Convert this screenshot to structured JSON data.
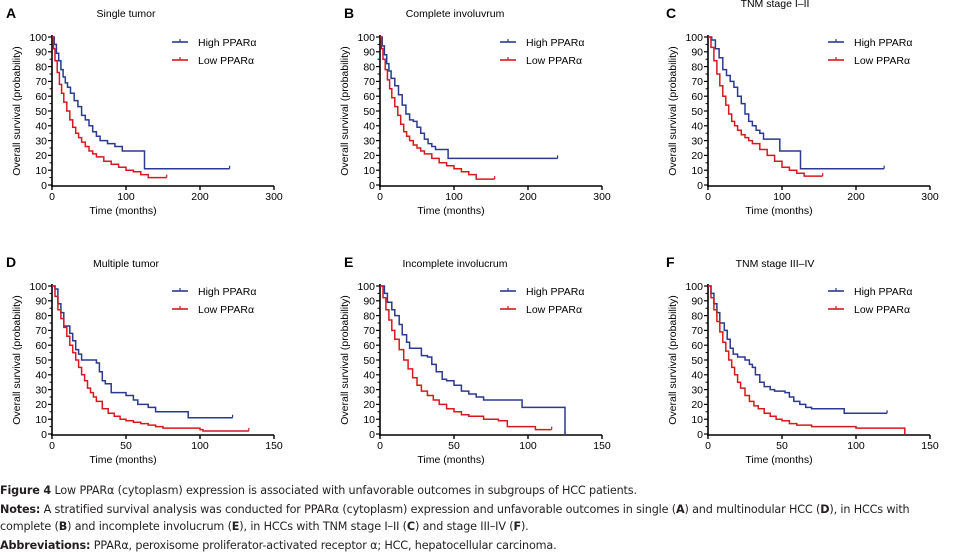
{
  "figure": {
    "caption_label": "Figure 4",
    "caption_title": "Low PPARα (cytoplasm) expression is associated with unfavorable outcomes in subgroups of HCC patients.",
    "notes_label": "Notes:",
    "notes_line1": "A stratified survival analysis was conducted for PPARα (cytoplasm) expression and unfavorable outcomes in single (",
    "notes_line1_A": "A",
    "notes_line1_mid": ") and multinodular HCC (",
    "notes_line1_D": "D",
    "notes_line1_end": "), in HCCs with",
    "notes_line2_start": "complete (",
    "notes_line2_B": "B",
    "notes_line2_mid1": ") and incomplete involucrum (",
    "notes_line2_E": "E",
    "notes_line2_mid2": "), in HCCs with TNM stage I–II (",
    "notes_line2_C": "C",
    "notes_line2_mid3": ") and stage III–IV (",
    "notes_line2_F": "F",
    "notes_line2_end": ").",
    "abbrev_label": "Abbreviations:",
    "abbrev_text": "PPARα, peroxisome proliferator-activated receptor α; HCC, hepatocellular carcinoma."
  },
  "colors": {
    "high": "#2b3990",
    "low": "#d7191f",
    "axis": "#000000"
  },
  "chart_data": [
    {
      "type": "line",
      "subtype": "kaplan-meier",
      "panel": "A",
      "title": "Single tumor",
      "xlabel": "Time (months)",
      "ylabel": "Overall survival (probability)",
      "xlim": [
        0,
        300
      ],
      "ylim": [
        0,
        100
      ],
      "xticks": [
        0,
        100,
        200,
        300
      ],
      "yticks": [
        0,
        10,
        20,
        30,
        40,
        50,
        60,
        70,
        80,
        90,
        100
      ],
      "legend": [
        "High PPARα",
        "Low PPARα"
      ],
      "legend_position": "top-right",
      "series": [
        {
          "name": "High PPARα",
          "x": [
            0,
            3,
            6,
            9,
            12,
            15,
            18,
            21,
            25,
            30,
            35,
            40,
            45,
            50,
            55,
            60,
            65,
            75,
            85,
            95,
            110,
            125,
            125,
            240
          ],
          "y": [
            100,
            95,
            89,
            84,
            78,
            73,
            69,
            66,
            62,
            57,
            53,
            47,
            44,
            40,
            36,
            33,
            30,
            28,
            26,
            23,
            23,
            23,
            11,
            11
          ]
        },
        {
          "name": "Low PPARα",
          "x": [
            0,
            2,
            4,
            7,
            10,
            13,
            16,
            20,
            24,
            28,
            32,
            36,
            40,
            45,
            50,
            55,
            60,
            70,
            80,
            90,
            100,
            110,
            120,
            130,
            155
          ],
          "y": [
            100,
            92,
            84,
            76,
            68,
            62,
            56,
            50,
            44,
            39,
            35,
            32,
            29,
            26,
            23,
            21,
            19,
            16,
            14,
            12,
            10,
            9,
            7,
            5,
            5
          ]
        }
      ]
    },
    {
      "type": "line",
      "subtype": "kaplan-meier",
      "panel": "B",
      "title": "Complete involuvrum",
      "xlabel": "Time (months)",
      "ylabel": "Overall survival (probability)",
      "xlim": [
        0,
        300
      ],
      "ylim": [
        0,
        100
      ],
      "xticks": [
        0,
        100,
        200,
        300
      ],
      "yticks": [
        0,
        10,
        20,
        30,
        40,
        50,
        60,
        70,
        80,
        90,
        100
      ],
      "legend": [
        "High PPARα",
        "Low PPARα"
      ],
      "legend_position": "top-right",
      "series": [
        {
          "name": "High PPARα",
          "x": [
            0,
            3,
            6,
            9,
            12,
            15,
            20,
            25,
            30,
            35,
            40,
            45,
            50,
            55,
            60,
            65,
            70,
            75,
            92,
            92,
            240
          ],
          "y": [
            100,
            94,
            88,
            82,
            77,
            72,
            67,
            61,
            54,
            48,
            44,
            43,
            39,
            35,
            31,
            28,
            26,
            24,
            24,
            18,
            18
          ]
        },
        {
          "name": "Low PPARα",
          "x": [
            0,
            2,
            4,
            7,
            10,
            13,
            16,
            20,
            24,
            28,
            32,
            36,
            40,
            45,
            50,
            55,
            60,
            70,
            80,
            90,
            100,
            110,
            120,
            130,
            155
          ],
          "y": [
            100,
            92,
            85,
            78,
            71,
            65,
            59,
            53,
            47,
            41,
            36,
            33,
            30,
            27,
            25,
            23,
            21,
            18,
            15,
            13,
            11,
            9,
            7,
            4,
            4
          ]
        }
      ]
    },
    {
      "type": "line",
      "subtype": "kaplan-meier",
      "panel": "C",
      "title": "TNM stage I–II",
      "xlabel": "Time (months)",
      "ylabel": "Overall survival (probability)",
      "xlim": [
        0,
        300
      ],
      "ylim": [
        0,
        100
      ],
      "xticks": [
        0,
        100,
        200,
        300
      ],
      "yticks": [
        0,
        10,
        20,
        30,
        40,
        50,
        60,
        70,
        80,
        90,
        100
      ],
      "legend": [
        "High PPARα",
        "Low PPARα"
      ],
      "legend_position": "top-right",
      "series": [
        {
          "name": "High PPARα",
          "x": [
            0,
            5,
            10,
            15,
            20,
            25,
            30,
            35,
            40,
            45,
            50,
            55,
            60,
            65,
            70,
            75,
            97,
            97,
            125,
            125,
            238
          ],
          "y": [
            100,
            98,
            92,
            86,
            78,
            74,
            70,
            66,
            60,
            55,
            48,
            43,
            40,
            37,
            35,
            31,
            31,
            23,
            23,
            11,
            11
          ]
        },
        {
          "name": "Low PPARα",
          "x": [
            0,
            4,
            8,
            12,
            16,
            20,
            24,
            28,
            32,
            36,
            40,
            45,
            50,
            55,
            60,
            70,
            80,
            90,
            100,
            110,
            120,
            130,
            155
          ],
          "y": [
            100,
            93,
            84,
            75,
            67,
            60,
            54,
            48,
            43,
            40,
            37,
            34,
            32,
            30,
            28,
            24,
            20,
            16,
            12,
            10,
            8,
            6,
            6
          ]
        }
      ]
    },
    {
      "type": "line",
      "subtype": "kaplan-meier",
      "panel": "D",
      "title": "Multiple tumor",
      "xlabel": "Time (months)",
      "ylabel": "Overall survival (probability)",
      "xlim": [
        0,
        150
      ],
      "ylim": [
        0,
        100
      ],
      "xticks": [
        0,
        50,
        100,
        150
      ],
      "yticks": [
        0,
        10,
        20,
        30,
        40,
        50,
        60,
        70,
        80,
        90,
        100
      ],
      "legend": [
        "High PPARα",
        "Low PPARα"
      ],
      "legend_position": "top-right",
      "series": [
        {
          "name": "High PPARα",
          "x": [
            0,
            2,
            4,
            6,
            8,
            12,
            14,
            16,
            18,
            20,
            26,
            30,
            32,
            34,
            36,
            40,
            45,
            50,
            55,
            58,
            65,
            70,
            80,
            92,
            92,
            122
          ],
          "y": [
            100,
            98,
            88,
            82,
            73,
            68,
            63,
            57,
            54,
            50,
            50,
            48,
            42,
            36,
            34,
            28,
            28,
            26,
            23,
            20,
            18,
            15,
            15,
            15,
            11,
            11
          ]
        },
        {
          "name": "Low PPARα",
          "x": [
            0,
            2,
            4,
            6,
            8,
            10,
            12,
            14,
            16,
            18,
            20,
            22,
            24,
            26,
            28,
            30,
            34,
            38,
            42,
            46,
            50,
            55,
            60,
            65,
            70,
            75,
            100,
            102,
            133
          ],
          "y": [
            100,
            93,
            84,
            78,
            72,
            66,
            60,
            55,
            50,
            45,
            40,
            36,
            31,
            28,
            25,
            22,
            17,
            14,
            12,
            10,
            9,
            8,
            7,
            6,
            5,
            4,
            3,
            2,
            2
          ]
        }
      ]
    },
    {
      "type": "line",
      "subtype": "kaplan-meier",
      "panel": "E",
      "title": "Incomplete involucrum",
      "xlabel": "Time (months)",
      "ylabel": "Overall survival (probability)",
      "xlim": [
        0,
        150
      ],
      "ylim": [
        0,
        100
      ],
      "xticks": [
        0,
        50,
        100,
        150
      ],
      "yticks": [
        0,
        10,
        20,
        30,
        40,
        50,
        60,
        70,
        80,
        90,
        100
      ],
      "legend": [
        "High PPARα",
        "Low PPARα"
      ],
      "legend_position": "top-right",
      "series": [
        {
          "name": "High PPARα",
          "x": [
            0,
            3,
            5,
            8,
            10,
            13,
            15,
            18,
            20,
            25,
            28,
            32,
            35,
            38,
            42,
            45,
            50,
            55,
            60,
            65,
            70,
            96,
            96,
            125,
            125
          ],
          "y": [
            100,
            95,
            89,
            84,
            80,
            74,
            67,
            62,
            58,
            58,
            53,
            52,
            47,
            42,
            37,
            36,
            33,
            29,
            27,
            25,
            23,
            23,
            18,
            18,
            0
          ]
        },
        {
          "name": "Low PPARα",
          "x": [
            0,
            2,
            4,
            6,
            8,
            10,
            13,
            16,
            19,
            22,
            25,
            28,
            32,
            36,
            40,
            45,
            50,
            55,
            60,
            70,
            80,
            86,
            86,
            105,
            105,
            116
          ],
          "y": [
            100,
            92,
            84,
            77,
            70,
            64,
            57,
            50,
            44,
            38,
            33,
            29,
            26,
            23,
            20,
            17,
            15,
            13,
            12,
            10,
            9,
            8,
            5,
            5,
            3,
            3
          ]
        }
      ]
    },
    {
      "type": "line",
      "subtype": "kaplan-meier",
      "panel": "F",
      "title": "TNM stage III–IV",
      "xlabel": "Time (months)",
      "ylabel": "Overall survival (probability)",
      "xlim": [
        0,
        150
      ],
      "ylim": [
        0,
        100
      ],
      "xticks": [
        0,
        50,
        100,
        150
      ],
      "yticks": [
        0,
        10,
        20,
        30,
        40,
        50,
        60,
        70,
        80,
        90,
        100
      ],
      "legend": [
        "High PPARα",
        "Low PPARα"
      ],
      "legend_position": "top-right",
      "series": [
        {
          "name": "High PPARα",
          "x": [
            0,
            2,
            4,
            6,
            8,
            11,
            13,
            15,
            17,
            20,
            25,
            28,
            30,
            32,
            35,
            38,
            42,
            45,
            52,
            55,
            58,
            62,
            66,
            70,
            80,
            92,
            92,
            121
          ],
          "y": [
            100,
            95,
            88,
            82,
            75,
            70,
            64,
            58,
            54,
            52,
            50,
            47,
            45,
            40,
            35,
            32,
            30,
            29,
            28,
            25,
            22,
            20,
            18,
            17,
            17,
            17,
            14,
            14
          ]
        },
        {
          "name": "Low PPARα",
          "x": [
            0,
            2,
            4,
            6,
            8,
            10,
            12,
            14,
            16,
            18,
            20,
            22,
            25,
            28,
            31,
            34,
            38,
            42,
            46,
            50,
            55,
            60,
            70,
            80,
            100,
            133,
            133
          ],
          "y": [
            100,
            92,
            84,
            76,
            69,
            62,
            56,
            50,
            45,
            40,
            35,
            31,
            26,
            22,
            19,
            17,
            14,
            12,
            10,
            9,
            7,
            6,
            5,
            5,
            4,
            4,
            0
          ]
        }
      ]
    }
  ]
}
